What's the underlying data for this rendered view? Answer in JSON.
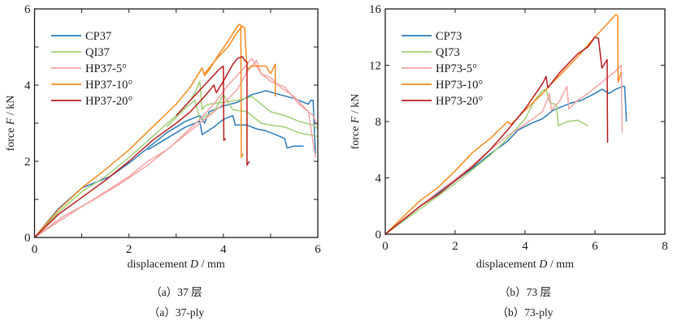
{
  "chart_data": [
    {
      "type": "line",
      "id": "left",
      "title": "",
      "xlabel": "displacement D / mm",
      "ylabel": "force F / kN",
      "xlim": [
        0,
        6
      ],
      "ylim": [
        0,
        6
      ],
      "xticks": [
        0,
        2,
        4,
        6
      ],
      "yticks": [
        0,
        2,
        4,
        6
      ],
      "minor_xticks": [
        1,
        3,
        5
      ],
      "minor_yticks": [
        1,
        3,
        5
      ],
      "grid": false,
      "legend_position": "top-left",
      "caption_cn": "（a）37 层",
      "caption_en": "（a）37-ply",
      "series": [
        {
          "name": "CP37",
          "color": "#2a7ab8",
          "x": [
            0,
            0.5,
            1.0,
            1.3,
            1.6,
            2.0,
            2.4,
            2.8,
            3.0,
            3.2,
            3.5,
            3.6,
            3.65,
            3.7,
            4.0,
            4.3,
            4.6,
            4.9,
            5.2,
            5.5,
            5.7,
            5.8,
            5.85,
            5.9,
            5.95
          ],
          "y": [
            0,
            0.75,
            1.3,
            1.45,
            1.6,
            1.95,
            2.35,
            2.75,
            2.9,
            3.05,
            3.2,
            3.0,
            3.15,
            3.3,
            3.45,
            3.55,
            3.75,
            3.85,
            3.75,
            3.65,
            3.55,
            3.5,
            3.6,
            3.6,
            2.2
          ]
        },
        {
          "name": "CP37-b",
          "color": "#2a7ab8",
          "legend": false,
          "x": [
            2.4,
            2.8,
            3.2,
            3.5,
            3.55,
            3.8,
            4.0,
            4.2,
            4.25,
            4.5,
            4.7,
            4.9,
            5.1,
            5.3,
            5.35,
            5.5,
            5.7
          ],
          "y": [
            2.3,
            2.6,
            2.9,
            3.05,
            2.7,
            2.9,
            3.1,
            3.2,
            2.95,
            2.95,
            2.85,
            2.8,
            2.7,
            2.6,
            2.35,
            2.4,
            2.4
          ]
        },
        {
          "name": "QI37",
          "color": "#9fcf74",
          "x": [
            0,
            0.5,
            1.0,
            1.5,
            2.0,
            2.5,
            3.0,
            3.3,
            3.4,
            3.5,
            3.55,
            3.6,
            3.7,
            4.0,
            4.3,
            4.6,
            5.0,
            5.3,
            5.6,
            5.9,
            6.0
          ],
          "y": [
            0,
            0.65,
            1.2,
            1.6,
            2.1,
            2.65,
            3.2,
            3.6,
            3.8,
            4.1,
            3.35,
            3.45,
            3.5,
            3.55,
            3.6,
            3.7,
            3.3,
            3.2,
            3.05,
            2.95,
            2.85
          ]
        },
        {
          "name": "QI37-b",
          "color": "#9fcf74",
          "legend": false,
          "x": [
            2.8,
            3.2,
            3.4,
            3.5,
            3.8,
            4.0,
            4.2,
            4.5,
            4.8,
            5.0,
            5.3,
            5.6,
            6.0
          ],
          "y": [
            2.9,
            3.4,
            3.6,
            3.1,
            3.3,
            3.75,
            3.35,
            3.3,
            3.0,
            2.95,
            2.9,
            2.75,
            2.65
          ]
        },
        {
          "name": "HP37-5°",
          "color": "#f4a3a3",
          "x": [
            0,
            0.6,
            1.2,
            1.8,
            2.4,
            2.9,
            3.2,
            3.5,
            3.8,
            4.1,
            4.4,
            4.6,
            4.8,
            5.0,
            5.3,
            5.6,
            5.9,
            6.0
          ],
          "y": [
            0,
            0.55,
            0.95,
            1.4,
            1.9,
            2.4,
            2.75,
            3.1,
            3.5,
            4.0,
            4.4,
            4.7,
            4.3,
            4.1,
            3.95,
            3.5,
            3.2,
            2.9
          ]
        },
        {
          "name": "HP37-5°-b",
          "color": "#f4a3a3",
          "legend": false,
          "x": [
            0,
            0.8,
            1.5,
            2.0,
            2.4,
            2.8,
            3.2,
            3.6,
            4.0,
            4.3,
            4.5,
            4.7,
            4.8,
            5.0,
            5.2,
            5.5,
            5.8,
            5.95
          ],
          "y": [
            0,
            0.65,
            1.2,
            1.6,
            2.0,
            2.3,
            2.7,
            3.1,
            3.5,
            3.9,
            4.35,
            4.65,
            4.3,
            4.2,
            3.95,
            3.7,
            3.3,
            2.1
          ]
        },
        {
          "name": "HP37-10°",
          "color": "#f7891e",
          "x": [
            0,
            0.5,
            1.0,
            1.5,
            2.0,
            2.5,
            3.0,
            3.3,
            3.55,
            3.6,
            3.7,
            3.9,
            4.1,
            4.3,
            4.35,
            4.37,
            4.38,
            4.42
          ],
          "y": [
            0,
            0.72,
            1.3,
            1.78,
            2.3,
            2.9,
            3.5,
            3.95,
            4.45,
            4.25,
            4.4,
            4.8,
            5.15,
            5.55,
            5.6,
            5.55,
            2.1,
            2.2
          ]
        },
        {
          "name": "HP37-10°-b",
          "color": "#f7891e",
          "legend": false,
          "x": [
            3.6,
            3.9,
            4.1,
            4.3,
            4.4,
            4.45,
            4.5,
            4.6,
            4.9,
            5.0,
            5.1,
            5.1
          ],
          "y": [
            4.3,
            4.75,
            5.0,
            5.4,
            5.55,
            5.5,
            4.4,
            4.5,
            4.5,
            4.3,
            4.55,
            3.7
          ]
        },
        {
          "name": "HP37-20°",
          "color": "#b81c1c",
          "x": [
            0,
            0.5,
            1.0,
            1.5,
            2.0,
            2.5,
            3.0,
            3.3,
            3.6,
            3.8,
            3.85,
            4.0,
            4.2,
            4.3,
            4.4,
            4.45,
            4.5,
            4.5,
            4.55
          ],
          "y": [
            0,
            0.6,
            1.05,
            1.5,
            2.0,
            2.55,
            3.0,
            3.3,
            3.7,
            4.0,
            3.8,
            4.1,
            4.55,
            4.7,
            4.75,
            4.65,
            4.6,
            1.9,
            2.0
          ]
        },
        {
          "name": "HP37-20°-b",
          "color": "#b81c1c",
          "legend": false,
          "x": [
            3.0,
            3.3,
            3.6,
            3.9,
            4.0,
            4.01,
            4.05
          ],
          "y": [
            3.2,
            3.6,
            4.0,
            4.4,
            4.5,
            2.55,
            2.6
          ]
        }
      ]
    },
    {
      "type": "line",
      "id": "right",
      "title": "",
      "xlabel": "displacement D / mm",
      "ylabel": "force F / kN",
      "xlim": [
        0,
        8
      ],
      "ylim": [
        0,
        16
      ],
      "xticks": [
        0,
        2,
        4,
        6,
        8
      ],
      "yticks": [
        0,
        4,
        8,
        12,
        16
      ],
      "minor_xticks": [],
      "minor_yticks": [],
      "grid": false,
      "legend_position": "top-left",
      "caption_cn": "（b）73 层",
      "caption_en": "（b）73-ply",
      "series": [
        {
          "name": "CP73",
          "color": "#2a7ab8",
          "x": [
            0,
            0.5,
            1.0,
            1.5,
            2.0,
            2.5,
            3.0,
            3.5,
            3.8,
            4.2,
            4.5,
            4.8,
            5.0,
            5.3,
            5.6,
            6.0,
            6.2,
            6.4,
            6.6,
            6.8,
            6.85,
            6.9
          ],
          "y": [
            0,
            1.0,
            2.0,
            2.9,
            3.8,
            4.7,
            5.7,
            6.6,
            7.4,
            7.9,
            8.2,
            8.8,
            9.0,
            9.3,
            9.5,
            10.0,
            10.3,
            10.0,
            10.3,
            10.5,
            10.5,
            8.0
          ]
        },
        {
          "name": "QI73",
          "color": "#9fcf74",
          "x": [
            0,
            0.5,
            1.0,
            1.5,
            2.0,
            2.5,
            3.0,
            3.5,
            4.0,
            4.3,
            4.5,
            4.6,
            4.7,
            4.75,
            4.9,
            4.95,
            5.2,
            5.5,
            5.8
          ],
          "y": [
            0,
            0.9,
            1.8,
            2.7,
            3.6,
            4.6,
            5.6,
            6.8,
            8.2,
            9.6,
            10.2,
            10.3,
            9.4,
            9.3,
            9.2,
            7.7,
            8.0,
            8.1,
            7.7
          ]
        },
        {
          "name": "HP73-5°",
          "color": "#f4a3a3",
          "x": [
            0,
            0.5,
            1.0,
            1.5,
            2.0,
            2.5,
            3.0,
            3.5,
            4.0,
            4.5,
            4.7,
            4.75,
            5.0,
            5.2,
            5.25,
            5.5,
            5.8,
            6.0,
            6.3,
            6.6,
            6.75,
            6.78
          ],
          "y": [
            0,
            1.0,
            2.0,
            3.0,
            3.9,
            4.9,
            6.0,
            7.0,
            7.8,
            8.7,
            10.0,
            8.8,
            9.5,
            10.5,
            8.9,
            9.5,
            10.0,
            10.4,
            11.0,
            11.6,
            12.0,
            7.2
          ]
        },
        {
          "name": "HP73-10°",
          "color": "#f7891e",
          "x": [
            0,
            0.5,
            1.0,
            1.5,
            2.0,
            2.5,
            3.0,
            3.5,
            3.6,
            4.0,
            4.5,
            4.8,
            5.0,
            5.5,
            6.0,
            6.3,
            6.6,
            6.65,
            6.66,
            6.75
          ],
          "y": [
            0,
            1.2,
            2.4,
            3.3,
            4.5,
            5.8,
            6.8,
            8.0,
            7.8,
            8.8,
            10.0,
            10.8,
            11.3,
            12.6,
            14.0,
            14.8,
            15.6,
            15.5,
            10.8,
            11.5
          ]
        },
        {
          "name": "HP73-20°",
          "color": "#b81c1c",
          "x": [
            0,
            0.5,
            1.0,
            1.5,
            2.0,
            2.5,
            3.0,
            3.5,
            4.0,
            4.5,
            4.6,
            4.65,
            5.0,
            5.5,
            5.8,
            6.0,
            6.1,
            6.2,
            6.3,
            6.35,
            6.36
          ],
          "y": [
            0,
            1.0,
            2.0,
            2.8,
            3.8,
            4.8,
            6.0,
            7.4,
            8.9,
            10.7,
            11.2,
            10.4,
            11.5,
            12.8,
            13.3,
            14.0,
            13.9,
            11.8,
            12.2,
            12.4,
            6.5
          ]
        }
      ]
    }
  ]
}
